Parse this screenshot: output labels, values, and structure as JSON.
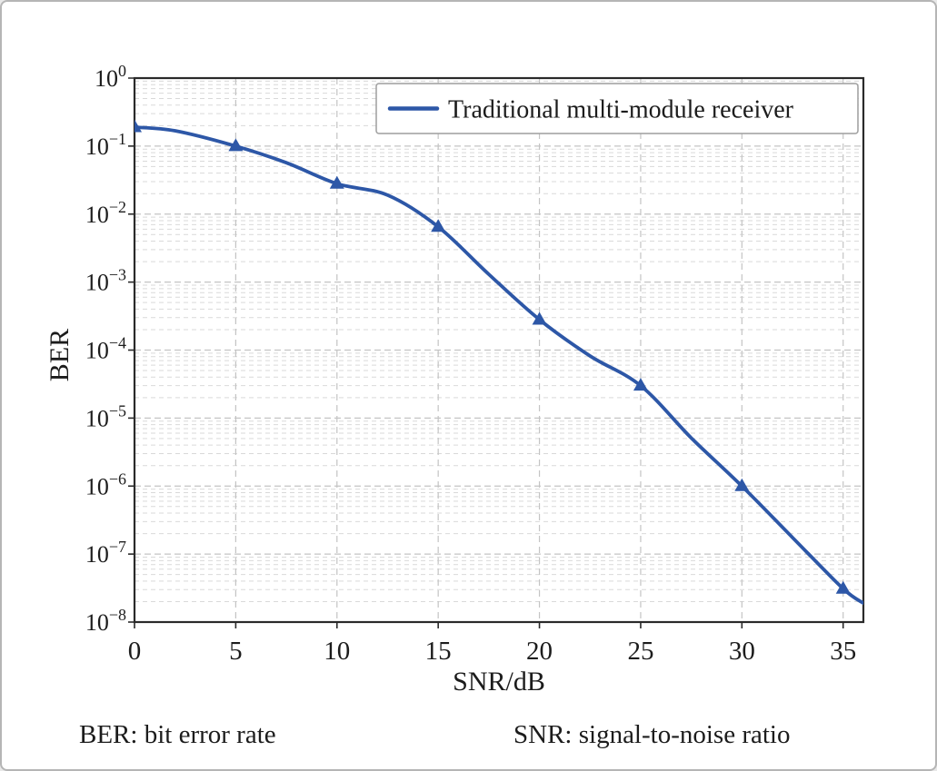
{
  "figure": {
    "xlabel": "SNR/dB",
    "ylabel": "BER",
    "footnotes": {
      "left": "BER: bit error rate",
      "right": "SNR: signal-to-noise ratio"
    }
  },
  "chart_data": {
    "type": "line",
    "title": "",
    "xlabel": "SNR/dB",
    "ylabel": "BER",
    "x_ticks": [
      0,
      5,
      10,
      15,
      20,
      25,
      30,
      35
    ],
    "y_tick_exponents": [
      0,
      -1,
      -2,
      -3,
      -4,
      -5,
      -6,
      -7,
      -8
    ],
    "xlim": [
      0,
      36
    ],
    "ylim": [
      1e-08,
      1
    ],
    "y_scale": "log",
    "grid": "major and minor dashed gridlines, both axes",
    "legend_position": "upper right",
    "series": [
      {
        "name": "Traditional multi-module receiver",
        "color": "#2d57a7",
        "marker": "triangle-up",
        "marker_points": {
          "x": [
            0,
            5,
            10,
            15,
            20,
            25,
            30,
            35
          ],
          "y": [
            0.19,
            0.1,
            0.028,
            0.0065,
            0.00028,
            3e-05,
            1e-06,
            3.1e-08
          ]
        },
        "curve": {
          "x": [
            0,
            2,
            5,
            7.5,
            10,
            12.5,
            15,
            17.5,
            20,
            22.5,
            25,
            27.5,
            30,
            32.5,
            35,
            36
          ],
          "y": [
            0.19,
            0.168,
            0.1,
            0.057,
            0.028,
            0.019,
            0.0065,
            0.0013,
            0.00028,
            8.2e-05,
            3e-05,
            5.1e-06,
            1e-06,
            1.75e-07,
            3.1e-08,
            1.9e-08
          ]
        }
      }
    ]
  },
  "colors": {
    "line": "#2d57a7",
    "axis": "#2a2a2a",
    "grid_major": "#c4c4c4",
    "grid_minor": "#d9d9d9",
    "legend_frame": "#9e9e9e",
    "text": "#1c1c1c",
    "background": "#ffffff"
  }
}
